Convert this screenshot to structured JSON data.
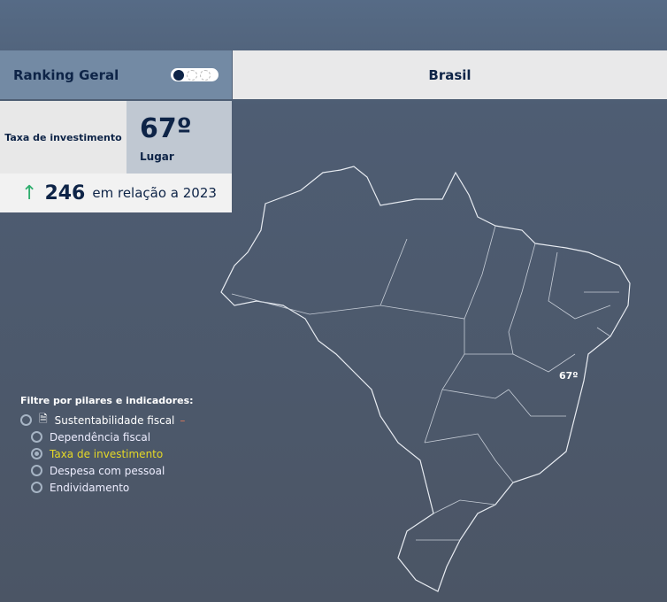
{
  "header": {
    "title": "Ranking Geral",
    "toggle_active": 1,
    "region": "Brasil"
  },
  "card": {
    "indicator": "Taxa de investimento",
    "rank": "67º",
    "rank_label": "Lugar",
    "change_value": "246",
    "change_text": "em relação a 2023",
    "change_direction": "up",
    "change_color": "#2fae6e"
  },
  "filter": {
    "heading": "Filtre por pilares e indicadores:",
    "pillar": {
      "label": "Sustentabilidade fiscal",
      "icon": "document-dollar-icon",
      "collapse": "–"
    },
    "indicators": [
      {
        "label": "Dependência fiscal",
        "selected": false
      },
      {
        "label": "Taxa de investimento",
        "selected": true
      },
      {
        "label": "Despesa com pessoal",
        "selected": false
      },
      {
        "label": "Endividamento",
        "selected": false
      }
    ]
  },
  "map": {
    "marker_label": "67º",
    "highlight_color": "#e5d826"
  }
}
